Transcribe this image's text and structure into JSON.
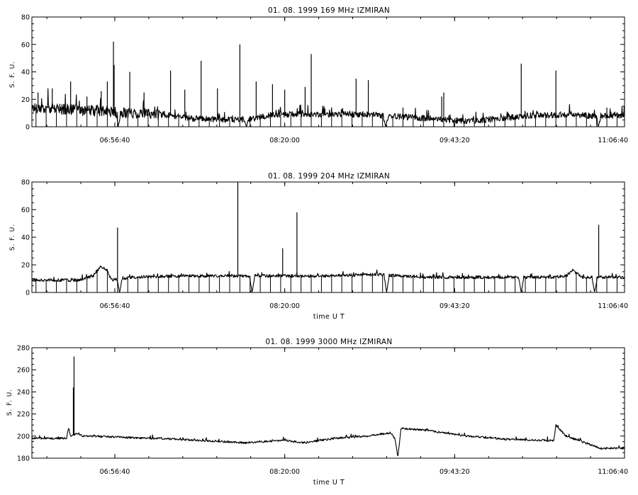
{
  "chart_data": [
    {
      "type": "line",
      "title": "01. 08. 1999    169 MHz    IZMIRAN",
      "ylabel": "S. F. U.",
      "xlabel": "",
      "x_range": [
        "06:16:00",
        "11:06:40"
      ],
      "x_ticks": [
        "06:56:40",
        "08:20:00",
        "09:43:20",
        "11:06:40"
      ],
      "ylim": [
        0,
        80
      ],
      "y_ticks": [
        0,
        20,
        40,
        60,
        80
      ],
      "series": [
        {
          "baseline": [
            {
              "t": "06:16:00",
              "v": 14
            },
            {
              "t": "06:30:00",
              "v": 13
            },
            {
              "t": "06:40:00",
              "v": 12
            },
            {
              "t": "06:55:00",
              "v": 11
            },
            {
              "t": "07:05:00",
              "v": 10
            },
            {
              "t": "07:20:00",
              "v": 9
            },
            {
              "t": "07:35:00",
              "v": 6
            },
            {
              "t": "07:55:00",
              "v": 5
            },
            {
              "t": "08:05:00",
              "v": 6
            },
            {
              "t": "08:15:00",
              "v": 9
            },
            {
              "t": "08:40:00",
              "v": 9
            },
            {
              "t": "09:00:00",
              "v": 9
            },
            {
              "t": "09:10:00",
              "v": 8
            },
            {
              "t": "09:30:00",
              "v": 6
            },
            {
              "t": "09:50:00",
              "v": 4
            },
            {
              "t": "10:05:00",
              "v": 6
            },
            {
              "t": "10:20:00",
              "v": 8
            },
            {
              "t": "10:40:00",
              "v": 9
            },
            {
              "t": "10:50:00",
              "v": 8
            },
            {
              "t": "11:06:40",
              "v": 8
            }
          ],
          "dropouts": [
            "06:58:20",
            "08:01:10",
            "09:09:30",
            "10:53:50"
          ],
          "spikes": [
            {
              "t": "06:19:00",
              "v": 25
            },
            {
              "t": "06:26:00",
              "v": 28
            },
            {
              "t": "06:35:00",
              "v": 33
            },
            {
              "t": "06:43:00",
              "v": 22
            },
            {
              "t": "06:50:00",
              "v": 26
            },
            {
              "t": "06:53:00",
              "v": 33
            },
            {
              "t": "06:56:00",
              "v": 62
            },
            {
              "t": "06:56:20",
              "v": 45
            },
            {
              "t": "07:04:00",
              "v": 40
            },
            {
              "t": "07:11:00",
              "v": 25
            },
            {
              "t": "07:24:00",
              "v": 41
            },
            {
              "t": "07:31:00",
              "v": 27
            },
            {
              "t": "07:39:00",
              "v": 48
            },
            {
              "t": "07:47:00",
              "v": 28
            },
            {
              "t": "07:58:00",
              "v": 60
            },
            {
              "t": "08:06:00",
              "v": 33
            },
            {
              "t": "08:14:00",
              "v": 31
            },
            {
              "t": "08:20:00",
              "v": 27
            },
            {
              "t": "08:30:00",
              "v": 29
            },
            {
              "t": "08:33:00",
              "v": 53
            },
            {
              "t": "08:55:00",
              "v": 35
            },
            {
              "t": "09:01:00",
              "v": 34
            },
            {
              "t": "09:18:00",
              "v": 14
            },
            {
              "t": "09:37:00",
              "v": 22
            },
            {
              "t": "09:38:00",
              "v": 25
            },
            {
              "t": "10:16:00",
              "v": 46
            },
            {
              "t": "10:33:00",
              "v": 41
            },
            {
              "t": "10:58:00",
              "v": 14
            }
          ]
        }
      ],
      "grid": false,
      "legend": "none"
    },
    {
      "type": "line",
      "title": "01. 08. 1999    204 MHz    IZMIRAN",
      "ylabel": "S. F. U.",
      "xlabel": "time   U T",
      "x_range": [
        "06:16:00",
        "11:06:40"
      ],
      "x_ticks": [
        "06:56:40",
        "08:20:00",
        "09:43:20",
        "11:06:40"
      ],
      "ylim": [
        0,
        80
      ],
      "y_ticks": [
        0,
        20,
        40,
        60,
        80
      ],
      "series": [
        {
          "baseline": [
            {
              "t": "06:16:00",
              "v": 9
            },
            {
              "t": "06:40:00",
              "v": 9
            },
            {
              "t": "06:46:00",
              "v": 12
            },
            {
              "t": "06:50:00",
              "v": 19
            },
            {
              "t": "06:53:00",
              "v": 16
            },
            {
              "t": "06:55:00",
              "v": 9
            },
            {
              "t": "07:05:00",
              "v": 11
            },
            {
              "t": "07:30:00",
              "v": 12
            },
            {
              "t": "07:55:00",
              "v": 12
            },
            {
              "t": "08:10:00",
              "v": 12
            },
            {
              "t": "08:40:00",
              "v": 12
            },
            {
              "t": "09:05:00",
              "v": 13
            },
            {
              "t": "09:30:00",
              "v": 11
            },
            {
              "t": "10:00:00",
              "v": 11
            },
            {
              "t": "10:30:00",
              "v": 11
            },
            {
              "t": "10:38:00",
              "v": 12
            },
            {
              "t": "10:41:00",
              "v": 16
            },
            {
              "t": "10:46:00",
              "v": 11
            },
            {
              "t": "11:06:40",
              "v": 11
            }
          ],
          "dropouts": [
            "06:59:00",
            "08:04:00",
            "09:10:00",
            "10:16:00",
            "10:52:00"
          ],
          "spikes": [
            {
              "t": "06:58:00",
              "v": 47
            },
            {
              "t": "07:57:00",
              "v": 82
            },
            {
              "t": "08:19:00",
              "v": 32
            },
            {
              "t": "08:26:00",
              "v": 58
            },
            {
              "t": "10:54:00",
              "v": 49
            }
          ]
        }
      ],
      "grid": false,
      "legend": "none"
    },
    {
      "type": "line",
      "title": "01. 08. 1999    3000 MHz    IZMIRAN",
      "ylabel": "S. F. U.",
      "xlabel": "time   U T",
      "x_range": [
        "06:16:00",
        "11:06:40"
      ],
      "x_ticks": [
        "06:56:40",
        "08:20:00",
        "09:43:20",
        "11:06:40"
      ],
      "ylim": [
        180,
        280
      ],
      "y_ticks": [
        180,
        200,
        220,
        240,
        260,
        280
      ],
      "series": [
        {
          "baseline": [
            {
              "t": "06:16:00",
              "v": 198
            },
            {
              "t": "06:33:00",
              "v": 198
            },
            {
              "t": "06:34:00",
              "v": 208
            },
            {
              "t": "06:35:00",
              "v": 199
            },
            {
              "t": "06:38:00",
              "v": 203
            },
            {
              "t": "06:41:00",
              "v": 200
            },
            {
              "t": "07:00:00",
              "v": 199
            },
            {
              "t": "07:30:00",
              "v": 197
            },
            {
              "t": "08:00:00",
              "v": 194
            },
            {
              "t": "08:20:00",
              "v": 196
            },
            {
              "t": "08:30:00",
              "v": 194
            },
            {
              "t": "08:45:00",
              "v": 198
            },
            {
              "t": "09:00:00",
              "v": 200
            },
            {
              "t": "09:12:00",
              "v": 203
            },
            {
              "t": "09:14:00",
              "v": 198
            },
            {
              "t": "09:15:30",
              "v": 181
            },
            {
              "t": "09:17:00",
              "v": 207
            },
            {
              "t": "09:30:00",
              "v": 205
            },
            {
              "t": "09:50:00",
              "v": 200
            },
            {
              "t": "10:10:00",
              "v": 197
            },
            {
              "t": "10:32:00",
              "v": 196
            },
            {
              "t": "10:33:00",
              "v": 210
            },
            {
              "t": "10:38:00",
              "v": 200
            },
            {
              "t": "10:55:00",
              "v": 189
            },
            {
              "t": "11:06:40",
              "v": 189
            }
          ],
          "dropouts": [],
          "spikes": [
            {
              "t": "06:36:20",
              "v": 244
            },
            {
              "t": "06:36:40",
              "v": 272
            }
          ]
        }
      ],
      "grid": false,
      "legend": "none"
    }
  ]
}
